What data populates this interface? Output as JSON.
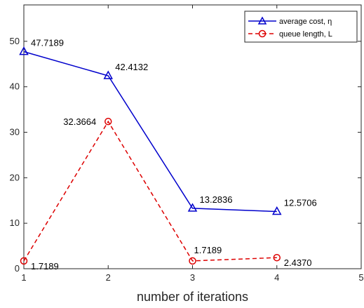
{
  "chart_data": {
    "type": "line",
    "xlabel": "number of iterations",
    "ylabel": "",
    "title": "",
    "xlim": [
      1,
      5
    ],
    "ylim": [
      0,
      58
    ],
    "xticks": [
      "1",
      "2",
      "3",
      "4",
      "5"
    ],
    "yticks": [
      "0",
      "10",
      "20",
      "30",
      "40",
      "50"
    ],
    "grid": false,
    "legend_position": "top-right",
    "x": [
      1,
      2,
      3,
      4
    ],
    "series": [
      {
        "name": "average cost, η",
        "color": "#0000cc",
        "marker": "triangle",
        "linestyle": "solid",
        "values": [
          47.7189,
          42.4132,
          13.2836,
          12.5706
        ],
        "labels": [
          "47.7189",
          "42.4132",
          "13.2836",
          "12.5706"
        ]
      },
      {
        "name": "queue length, L",
        "color": "#dd0000",
        "marker": "circle",
        "linestyle": "dashed",
        "values": [
          1.7189,
          32.3664,
          1.7189,
          2.437
        ],
        "labels": [
          "1.7189",
          "32.3664",
          "1.7189",
          "2.4370"
        ]
      }
    ]
  }
}
